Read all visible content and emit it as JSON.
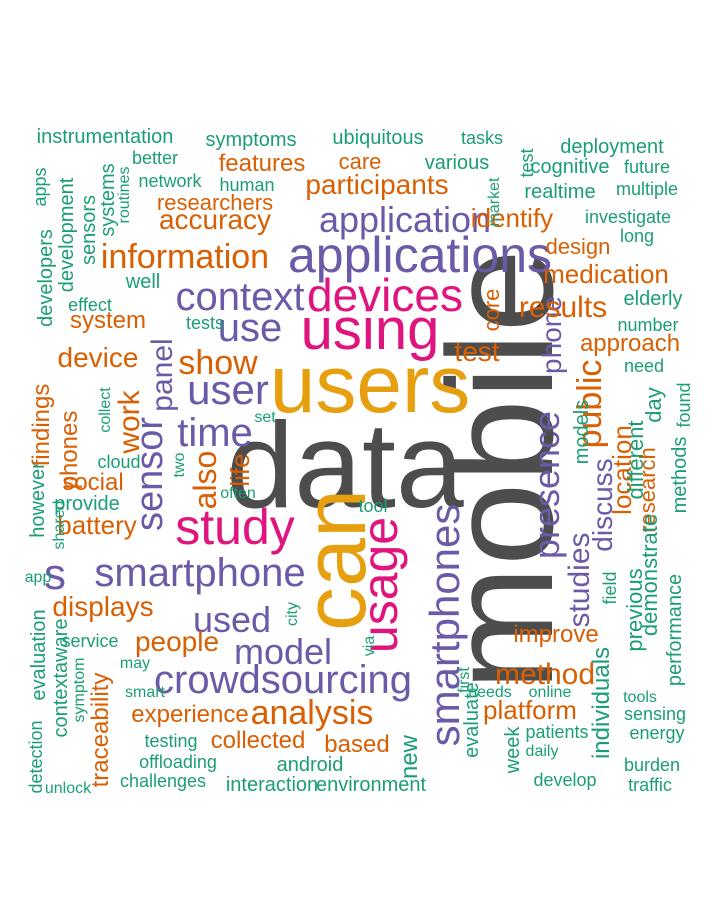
{
  "palette": {
    "c1": "#4d4d4d",
    "c2": "#e6a00f",
    "c3": "#e0147f",
    "c4": "#6b5aa8",
    "c5": "#d95f02",
    "c6": "#1b9e77"
  },
  "words": [
    {
      "text": "mobile",
      "color": "c1",
      "rot": -90
    },
    {
      "text": "data",
      "color": "c1",
      "rot": 0
    },
    {
      "text": "users",
      "color": "c2",
      "rot": 0
    },
    {
      "text": "can",
      "color": "c2",
      "rot": -90
    },
    {
      "text": "using",
      "color": "c3",
      "rot": 0
    },
    {
      "text": "devices",
      "color": "c3",
      "rot": 0
    },
    {
      "text": "study",
      "color": "c3",
      "rot": 0
    },
    {
      "text": "usage",
      "color": "c3",
      "rot": -90
    },
    {
      "text": "applications",
      "color": "c4",
      "rot": 0
    },
    {
      "text": "application",
      "color": "c4",
      "rot": 0
    },
    {
      "text": "smartphone",
      "color": "c4",
      "rot": 0
    },
    {
      "text": "smartphones",
      "color": "c4",
      "rot": -90
    },
    {
      "text": "context",
      "color": "c4",
      "rot": 0
    },
    {
      "text": "use",
      "color": "c4",
      "rot": 0
    },
    {
      "text": "user",
      "color": "c4",
      "rot": 0
    },
    {
      "text": "time",
      "color": "c4",
      "rot": 0
    },
    {
      "text": "sensor",
      "color": "c4",
      "rot": -90
    },
    {
      "text": "panel",
      "color": "c4",
      "rot": -90
    },
    {
      "text": "crowdsourcing",
      "color": "c4",
      "rot": 0
    },
    {
      "text": "model",
      "color": "c4",
      "rot": 0
    },
    {
      "text": "used",
      "color": "c4",
      "rot": 0
    },
    {
      "text": "presence",
      "color": "c4",
      "rot": -90
    },
    {
      "text": "phone",
      "color": "c4",
      "rot": -90
    },
    {
      "text": "studies",
      "color": "c4",
      "rot": -90
    },
    {
      "text": "discuss",
      "color": "c4",
      "rot": -90
    },
    {
      "text": "information",
      "color": "c5",
      "rot": 0
    },
    {
      "text": "participants",
      "color": "c5",
      "rot": 0
    },
    {
      "text": "accuracy",
      "color": "c5",
      "rot": 0
    },
    {
      "text": "researchers",
      "color": "c5",
      "rot": 0
    },
    {
      "text": "results",
      "color": "c5",
      "rot": 0
    },
    {
      "text": "analysis",
      "color": "c5",
      "rot": 0
    },
    {
      "text": "show",
      "color": "c5",
      "rot": 0
    },
    {
      "text": "device",
      "color": "c5",
      "rot": 0
    },
    {
      "text": "work",
      "color": "c5",
      "rot": -90
    },
    {
      "text": "also",
      "color": "c5",
      "rot": -90
    },
    {
      "text": "battery",
      "color": "c5",
      "rot": 0
    },
    {
      "text": "social",
      "color": "c5",
      "rot": 0
    },
    {
      "text": "phones",
      "color": "c5",
      "rot": -90
    },
    {
      "text": "s",
      "color": "c4",
      "rot": 0
    },
    {
      "text": "displays",
      "color": "c5",
      "rot": 0
    },
    {
      "text": "people",
      "color": "c5",
      "rot": 0
    },
    {
      "text": "method",
      "color": "c5",
      "rot": 0
    },
    {
      "text": "platform",
      "color": "c5",
      "rot": 0
    },
    {
      "text": "improve",
      "color": "c5",
      "rot": 0
    },
    {
      "text": "identify",
      "color": "c5",
      "rot": 0
    },
    {
      "text": "features",
      "color": "c5",
      "rot": 0
    },
    {
      "text": "care",
      "color": "c5",
      "rot": 0
    },
    {
      "text": "system",
      "color": "c5",
      "rot": 0
    },
    {
      "text": "medication",
      "color": "c5",
      "rot": 0
    },
    {
      "text": "design",
      "color": "c5",
      "rot": 0
    },
    {
      "text": "approach",
      "color": "c5",
      "rot": 0
    },
    {
      "text": "public",
      "color": "c5",
      "rot": -90
    },
    {
      "text": "location",
      "color": "c5",
      "rot": -90
    },
    {
      "text": "test",
      "color": "c5",
      "rot": 0
    },
    {
      "text": "core",
      "color": "c5",
      "rot": -90
    },
    {
      "text": "life",
      "color": "c5",
      "rot": -90
    },
    {
      "text": "findings",
      "color": "c5",
      "rot": -90
    },
    {
      "text": "experience",
      "color": "c5",
      "rot": 0
    },
    {
      "text": "collected",
      "color": "c5",
      "rot": 0
    },
    {
      "text": "based",
      "color": "c5",
      "rot": 0
    },
    {
      "text": "research",
      "color": "c5",
      "rot": -90
    },
    {
      "text": "traceability",
      "color": "c5",
      "rot": -90
    },
    {
      "text": "instrumentation",
      "color": "c6",
      "rot": 0
    },
    {
      "text": "symptoms",
      "color": "c6",
      "rot": 0
    },
    {
      "text": "ubiquitous",
      "color": "c6",
      "rot": 0
    },
    {
      "text": "tasks",
      "color": "c6",
      "rot": 0
    },
    {
      "text": "deployment",
      "color": "c6",
      "rot": 0
    },
    {
      "text": "better",
      "color": "c6",
      "rot": 0
    },
    {
      "text": "various",
      "color": "c6",
      "rot": 0
    },
    {
      "text": "cognitive",
      "color": "c6",
      "rot": 0
    },
    {
      "text": "future",
      "color": "c6",
      "rot": 0
    },
    {
      "text": "network",
      "color": "c6",
      "rot": 0
    },
    {
      "text": "human",
      "color": "c6",
      "rot": 0
    },
    {
      "text": "realtime",
      "color": "c6",
      "rot": 0
    },
    {
      "text": "multiple",
      "color": "c6",
      "rot": 0
    },
    {
      "text": "investigate",
      "color": "c6",
      "rot": 0
    },
    {
      "text": "long",
      "color": "c6",
      "rot": 0
    },
    {
      "text": "well",
      "color": "c6",
      "rot": 0
    },
    {
      "text": "effect",
      "color": "c6",
      "rot": 0
    },
    {
      "text": "tests",
      "color": "c6",
      "rot": 0
    },
    {
      "text": "elderly",
      "color": "c6",
      "rot": 0
    },
    {
      "text": "number",
      "color": "c6",
      "rot": 0
    },
    {
      "text": "need",
      "color": "c6",
      "rot": 0
    },
    {
      "text": "set",
      "color": "c6",
      "rot": 0
    },
    {
      "text": "cloud",
      "color": "c6",
      "rot": 0
    },
    {
      "text": "two",
      "color": "c6",
      "rot": -90
    },
    {
      "text": "often",
      "color": "c6",
      "rot": 0
    },
    {
      "text": "provide",
      "color": "c6",
      "rot": 0
    },
    {
      "text": "tool",
      "color": "c6",
      "rot": 0
    },
    {
      "text": "city",
      "color": "c6",
      "rot": -90
    },
    {
      "text": "via",
      "color": "c6",
      "rot": -90
    },
    {
      "text": "service",
      "color": "c6",
      "rot": 0
    },
    {
      "text": "may",
      "color": "c6",
      "rot": 0
    },
    {
      "text": "smart",
      "color": "c6",
      "rot": 0
    },
    {
      "text": "testing",
      "color": "c6",
      "rot": 0
    },
    {
      "text": "offloading",
      "color": "c6",
      "rot": 0
    },
    {
      "text": "android",
      "color": "c6",
      "rot": 0
    },
    {
      "text": "challenges",
      "color": "c6",
      "rot": 0
    },
    {
      "text": "interaction",
      "color": "c6",
      "rot": 0
    },
    {
      "text": "environment",
      "color": "c6",
      "rot": 0
    },
    {
      "text": "unlock",
      "color": "c6",
      "rot": 0
    },
    {
      "text": "needs",
      "color": "c6",
      "rot": 0
    },
    {
      "text": "online",
      "color": "c6",
      "rot": 0
    },
    {
      "text": "patients",
      "color": "c6",
      "rot": 0
    },
    {
      "text": "daily",
      "color": "c6",
      "rot": 0
    },
    {
      "text": "develop",
      "color": "c6",
      "rot": 0
    },
    {
      "text": "tools",
      "color": "c6",
      "rot": 0
    },
    {
      "text": "sensing",
      "color": "c6",
      "rot": 0
    },
    {
      "text": "energy",
      "color": "c6",
      "rot": 0
    },
    {
      "text": "burden",
      "color": "c6",
      "rot": 0
    },
    {
      "text": "traffic",
      "color": "c6",
      "rot": 0
    },
    {
      "text": "apps",
      "color": "c6",
      "rot": -90
    },
    {
      "text": "developers",
      "color": "c6",
      "rot": -90
    },
    {
      "text": "development",
      "color": "c6",
      "rot": -90
    },
    {
      "text": "sensors",
      "color": "c6",
      "rot": -90
    },
    {
      "text": "systems",
      "color": "c6",
      "rot": -90
    },
    {
      "text": "routines",
      "color": "c6",
      "rot": -90
    },
    {
      "text": "collect",
      "color": "c6",
      "rot": -90
    },
    {
      "text": "however",
      "color": "c6",
      "rot": -90
    },
    {
      "text": "shared",
      "color": "c6",
      "rot": -90
    },
    {
      "text": "app",
      "color": "c6",
      "rot": 0
    },
    {
      "text": "evaluation",
      "color": "c6",
      "rot": -90
    },
    {
      "text": "contextaware",
      "color": "c6",
      "rot": -90
    },
    {
      "text": "symptom",
      "color": "c6",
      "rot": -90
    },
    {
      "text": "detection",
      "color": "c6",
      "rot": -90
    },
    {
      "text": "new",
      "color": "c6",
      "rot": -90
    },
    {
      "text": "evaluate",
      "color": "c6",
      "rot": -90
    },
    {
      "text": "first",
      "color": "c6",
      "rot": -90
    },
    {
      "text": "week",
      "color": "c6",
      "rot": -90
    },
    {
      "text": "market",
      "color": "c6",
      "rot": -90
    },
    {
      "text": "test",
      "color": "c6",
      "rot": -90
    },
    {
      "text": "models",
      "color": "c6",
      "rot": -90
    },
    {
      "text": "field",
      "color": "c6",
      "rot": -90
    },
    {
      "text": "individuals",
      "color": "c6",
      "rot": -90
    },
    {
      "text": "previous",
      "color": "c6",
      "rot": -90
    },
    {
      "text": "different",
      "color": "c6",
      "rot": -90
    },
    {
      "text": "demonstrate",
      "color": "c6",
      "rot": -90
    },
    {
      "text": "day",
      "color": "c6",
      "rot": -90
    },
    {
      "text": "performance",
      "color": "c6",
      "rot": -90
    },
    {
      "text": "methods",
      "color": "c6",
      "rot": -90
    },
    {
      "text": "found",
      "color": "c6",
      "rot": -90
    }
  ]
}
